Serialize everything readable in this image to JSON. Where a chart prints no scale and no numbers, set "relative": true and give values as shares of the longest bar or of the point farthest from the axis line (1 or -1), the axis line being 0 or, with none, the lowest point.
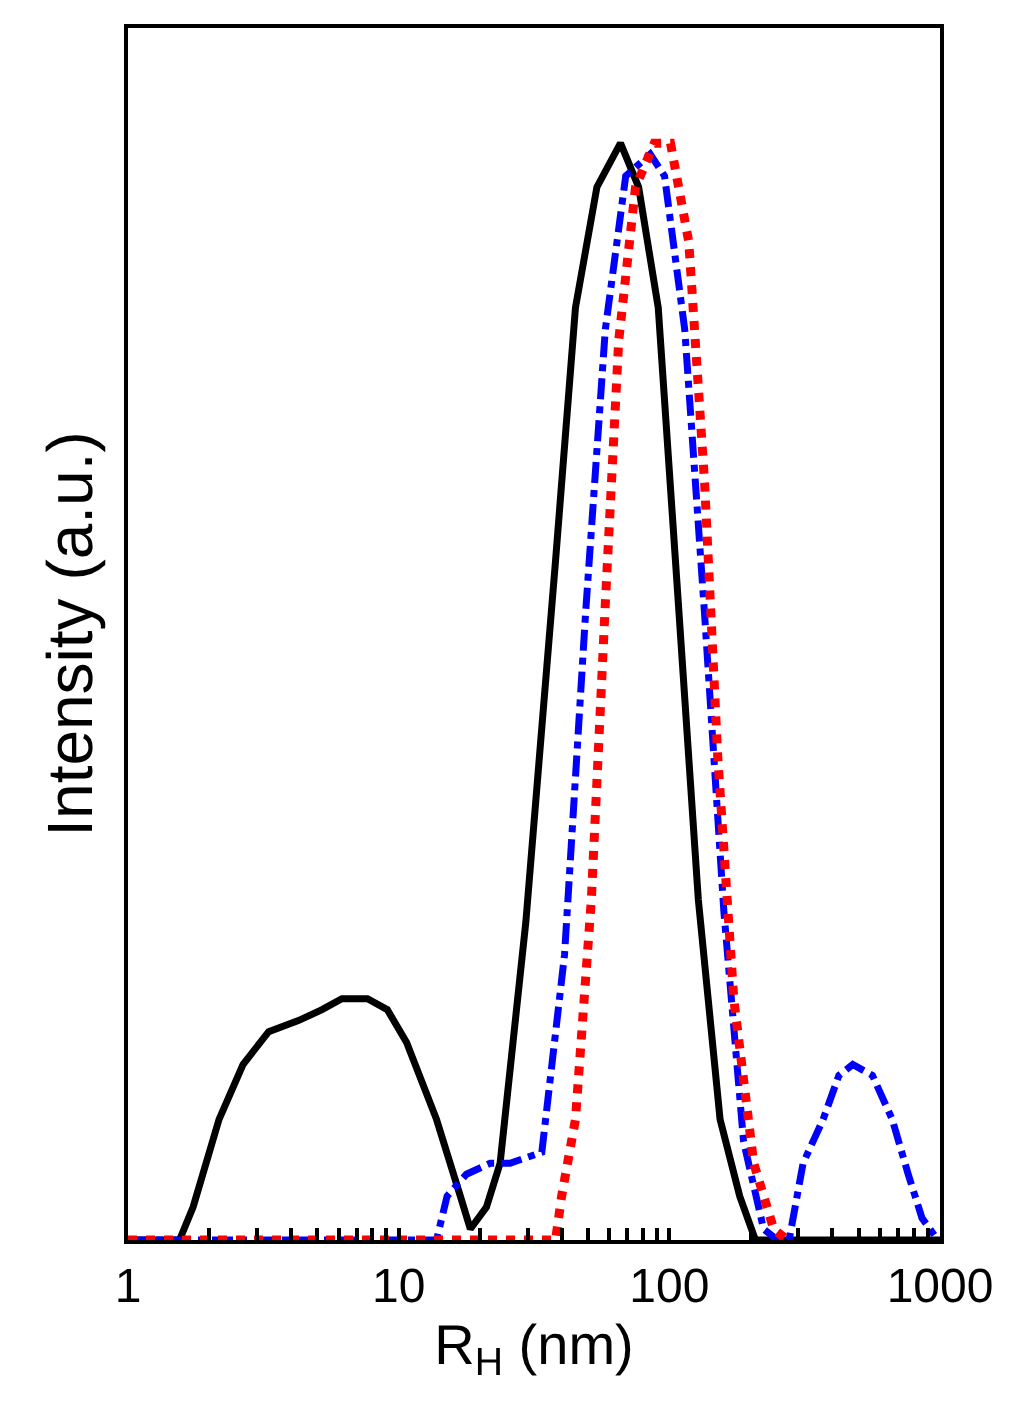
{
  "chart_data": {
    "type": "line",
    "xlabel": "R$_{H}$ (nm)",
    "ylabel": "Intensity (a.u.)",
    "log": "x",
    "relative": true,
    "xlim": [
      1,
      1000
    ],
    "xticks": [
      1,
      {
        "value": 2,
        "label": null
      },
      {
        "value": 3,
        "label": null
      },
      {
        "value": 4,
        "label": null
      },
      {
        "value": 5,
        "label": null
      },
      {
        "value": 6,
        "label": null
      },
      {
        "value": 7,
        "label": null
      },
      {
        "value": 8,
        "label": null
      },
      {
        "value": 9,
        "label": null
      },
      10,
      {
        "value": 20,
        "label": null
      },
      {
        "value": 30,
        "label": null
      },
      {
        "value": 40,
        "label": null
      },
      {
        "value": 50,
        "label": null
      },
      {
        "value": 60,
        "label": null
      },
      {
        "value": 70,
        "label": null
      },
      {
        "value": 80,
        "label": null
      },
      {
        "value": 90,
        "label": null
      },
      100,
      {
        "value": 200,
        "label": null
      },
      {
        "value": 300,
        "label": null
      },
      {
        "value": 400,
        "label": null
      },
      {
        "value": 500,
        "label": null
      },
      {
        "value": 600,
        "label": null
      },
      {
        "value": 700,
        "label": null
      },
      {
        "value": 800,
        "label": null
      },
      {
        "value": 900,
        "label": null
      },
      1000
    ],
    "tick_labels": "x",
    "marker": "none",
    "series": [
      {
        "color": "#000000",
        "line_style": "solid",
        "x": [
          1,
          1.55,
          1.74,
          2.17,
          2.66,
          3.31,
          4.26,
          5.21,
          6.17,
          7.06,
          7.67,
          9.08,
          10.7,
          13.8,
          16.9,
          18.4,
          21.1,
          23.7,
          29.5,
          38,
          45,
          54,
          66,
          77,
          91,
          108,
          128,
          154,
          182,
          208,
          1000
        ],
        "values": [
          0,
          0,
          0.03,
          0.11,
          0.16,
          0.19,
          0.2,
          0.21,
          0.22,
          0.22,
          0.22,
          0.21,
          0.18,
          0.11,
          0.04,
          0.01,
          0.03,
          0.07,
          0.29,
          0.62,
          0.85,
          0.96,
          1,
          0.96,
          0.85,
          0.58,
          0.31,
          0.11,
          0.04,
          0,
          0
        ]
      },
      {
        "color": "#0000ff",
        "line_style": "dashdot",
        "x": [
          1,
          13.8,
          15.1,
          17.8,
          21.8,
          25.8,
          33.8,
          41,
          49,
          58,
          69,
          85,
          96,
          114,
          135,
          159,
          188,
          223,
          251,
          277,
          312,
          370,
          423,
          476,
          563,
          666,
          763,
          858,
          982
        ],
        "values": [
          0,
          0,
          0.04,
          0.06,
          0.07,
          0.07,
          0.08,
          0.26,
          0.57,
          0.83,
          0.97,
          0.99,
          0.97,
          0.83,
          0.57,
          0.3,
          0.09,
          0.01,
          0,
          0,
          0.07,
          0.11,
          0.15,
          0.16,
          0.15,
          0.11,
          0.06,
          0.02,
          0
        ]
      },
      {
        "color": "#ff0000",
        "line_style": "dotted",
        "x": [
          1,
          38,
          40,
          45,
          51.5,
          58,
          65,
          75,
          88,
          101,
          118,
          135,
          151,
          173,
          205,
          243,
          273
        ],
        "values": [
          0,
          0,
          0.04,
          0.11,
          0.31,
          0.58,
          0.82,
          0.96,
          1,
          1,
          0.91,
          0.69,
          0.44,
          0.22,
          0.07,
          0.01,
          0
        ]
      }
    ]
  }
}
